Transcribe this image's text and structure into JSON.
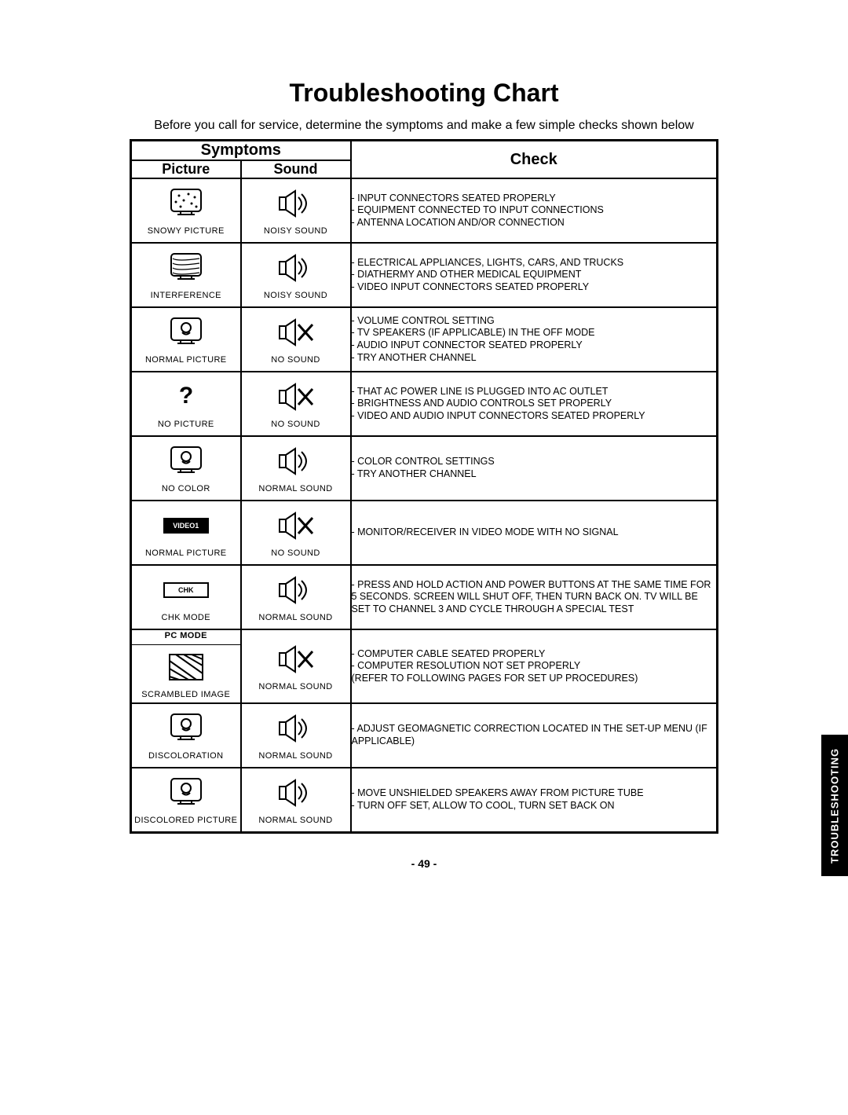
{
  "page": {
    "title": "Troubleshooting Chart",
    "intro": "Before you call for service, determine the symptoms and make a few simple checks shown below",
    "header_symptoms": "Symptoms",
    "header_check": "Check",
    "header_picture": "Picture",
    "header_sound": "Sound",
    "page_number": "- 49 -",
    "side_tab": "TROUBLESHOOTING"
  },
  "rows": [
    {
      "picture_label": "SNOWY PICTURE",
      "sound_label": "NOISY SOUND",
      "picture_icon": "tv-snow",
      "sound_icon": "speaker-noisy",
      "checks": [
        "- INPUT CONNECTORS SEATED PROPERLY",
        "- EQUIPMENT CONNECTED TO INPUT CONNECTIONS",
        "- ANTENNA LOCATION AND/OR CONNECTION"
      ]
    },
    {
      "picture_label": "INTERFERENCE",
      "sound_label": "NOISY SOUND",
      "picture_icon": "tv-interference",
      "sound_icon": "speaker-noisy",
      "checks": [
        "- ELECTRICAL APPLIANCES, LIGHTS, CARS, AND TRUCKS",
        "- DIATHERMY AND OTHER MEDICAL EQUIPMENT",
        "- VIDEO INPUT CONNECTORS SEATED PROPERLY"
      ]
    },
    {
      "picture_label": "NORMAL PICTURE",
      "sound_label": "NO SOUND",
      "picture_icon": "tv-normal",
      "sound_icon": "speaker-x",
      "checks": [
        "- VOLUME CONTROL SETTING",
        "- TV SPEAKERS (IF APPLICABLE) IN THE OFF MODE",
        "- AUDIO INPUT CONNECTOR SEATED PROPERLY",
        "- TRY ANOTHER CHANNEL"
      ]
    },
    {
      "picture_label": "NO PICTURE",
      "sound_label": "NO SOUND",
      "picture_icon": "tv-question",
      "sound_icon": "speaker-x",
      "checks": [
        "- THAT AC POWER LINE IS PLUGGED INTO AC OUTLET",
        "- BRIGHTNESS AND AUDIO CONTROLS SET PROPERLY",
        "- VIDEO AND AUDIO INPUT CONNECTORS SEATED PROPERLY"
      ]
    },
    {
      "picture_label": "NO COLOR",
      "sound_label": "NORMAL SOUND",
      "picture_icon": "tv-normal",
      "sound_icon": "speaker-noisy",
      "checks": [
        "- COLOR CONTROL SETTINGS",
        "- TRY ANOTHER CHANNEL"
      ]
    },
    {
      "picture_label": "NORMAL PICTURE",
      "sound_label": "NO SOUND",
      "picture_icon": "video1-box",
      "sound_icon": "speaker-x",
      "checks": [
        "- MONITOR/RECEIVER IN VIDEO MODE WITH NO SIGNAL"
      ]
    },
    {
      "picture_label": "CHK MODE",
      "sound_label": "NORMAL SOUND",
      "picture_icon": "chk-box",
      "sound_icon": "speaker-noisy",
      "checks": [
        "- PRESS AND HOLD ACTION AND POWER BUTTONS AT THE SAME TIME FOR 5 SECONDS. SCREEN WILL SHUT OFF, THEN TURN BACK ON. TV WILL BE SET TO CHANNEL 3 AND CYCLE THROUGH A SPECIAL TEST"
      ]
    },
    {
      "picture_label": "SCRAMBLED IMAGE",
      "sound_label": "NORMAL SOUND",
      "picture_icon": "scrambled",
      "picture_overline": "PC MODE",
      "sound_icon": "speaker-x",
      "checks": [
        "- COMPUTER CABLE SEATED PROPERLY",
        "- COMPUTER RESOLUTION NOT SET PROPERLY",
        "  (REFER TO FOLLOWING PAGES FOR SET UP PROCEDURES)"
      ]
    },
    {
      "picture_label": "DISCOLORATION",
      "sound_label": "NORMAL SOUND",
      "picture_icon": "tv-normal",
      "sound_icon": "speaker-noisy",
      "checks": [
        "- ADJUST GEOMAGNETIC CORRECTION LOCATED IN THE SET-UP MENU (IF APPLICABLE)"
      ]
    },
    {
      "picture_label": "DISCOLORED PICTURE",
      "sound_label": "NORMAL SOUND",
      "picture_icon": "tv-normal",
      "sound_icon": "speaker-noisy",
      "checks": [
        "- MOVE UNSHIELDED SPEAKERS AWAY FROM PICTURE TUBE",
        "- TURN OFF SET, ALLOW TO COOL, TURN SET BACK ON"
      ]
    }
  ]
}
